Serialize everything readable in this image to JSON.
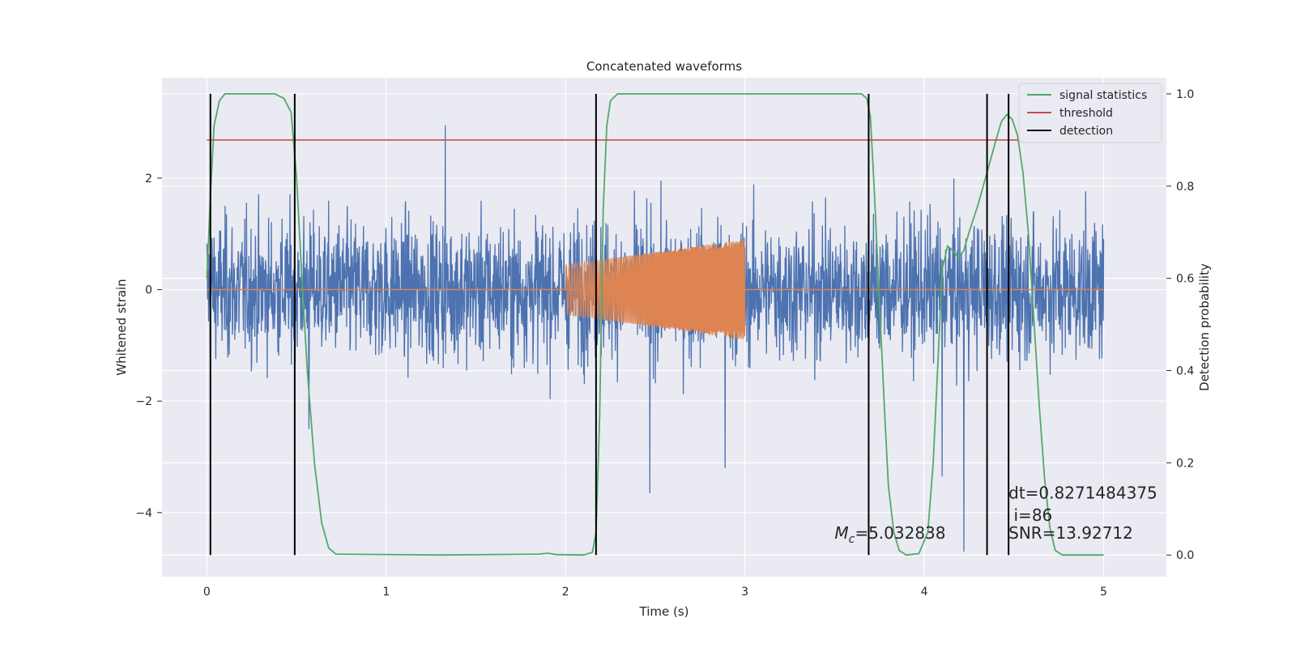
{
  "chart_data": {
    "type": "line",
    "title": "Concatenated waveforms",
    "xlabel": "Time (s)",
    "ylabel_left": "Whitened strain",
    "ylabel_right": "Detection probability",
    "xlim": [
      -0.25,
      5.35
    ],
    "ylim_left": [
      -5.15,
      3.8
    ],
    "ylim_right": [
      -0.047,
      1.035
    ],
    "x_ticks": [
      0,
      1,
      2,
      3,
      4,
      5
    ],
    "x_tick_labels": [
      "0",
      "1",
      "2",
      "3",
      "4",
      "5"
    ],
    "y_left_ticks": [
      -4,
      -2,
      0,
      2
    ],
    "y_left_tick_labels": [
      "−4",
      "−2",
      "0",
      "2"
    ],
    "y_right_ticks": [
      0.0,
      0.2,
      0.4,
      0.6,
      0.8,
      1.0
    ],
    "y_right_tick_labels": [
      "0.0",
      "0.2",
      "0.4",
      "0.6",
      "0.8",
      "1.0"
    ],
    "grid": true,
    "legend_position": "top-right",
    "series": [
      {
        "name": "",
        "kind": "noisy strain",
        "axis": "left",
        "color": "#4c72b0",
        "x_range": [
          0,
          5
        ],
        "typical_range": [
          -1.9,
          1.9
        ],
        "extreme_range": [
          -4.7,
          3.0
        ]
      },
      {
        "name": "",
        "kind": "injected chirp",
        "axis": "left",
        "color": "#dd8452",
        "x_range": [
          2.0,
          3.0
        ],
        "amplitude_start": 0.45,
        "amplitude_end": 0.9,
        "baseline": 0
      },
      {
        "name": "signal statistics",
        "axis": "right",
        "color": "#55a868",
        "points": [
          [
            0.0,
            0.6
          ],
          [
            0.02,
            0.78
          ],
          [
            0.04,
            0.93
          ],
          [
            0.07,
            0.985
          ],
          [
            0.1,
            1.0
          ],
          [
            0.38,
            1.0
          ],
          [
            0.43,
            0.99
          ],
          [
            0.47,
            0.96
          ],
          [
            0.5,
            0.82
          ],
          [
            0.53,
            0.6
          ],
          [
            0.56,
            0.4
          ],
          [
            0.6,
            0.2
          ],
          [
            0.64,
            0.07
          ],
          [
            0.68,
            0.015
          ],
          [
            0.72,
            0.002
          ],
          [
            1.3,
            0.0
          ],
          [
            1.85,
            0.002
          ],
          [
            1.9,
            0.004
          ],
          [
            1.95,
            0.001
          ],
          [
            2.1,
            0.0
          ],
          [
            2.15,
            0.006
          ],
          [
            2.17,
            0.05
          ],
          [
            2.19,
            0.3
          ],
          [
            2.21,
            0.75
          ],
          [
            2.23,
            0.93
          ],
          [
            2.25,
            0.985
          ],
          [
            2.29,
            1.0
          ],
          [
            3.65,
            1.0
          ],
          [
            3.68,
            0.99
          ],
          [
            3.7,
            0.95
          ],
          [
            3.72,
            0.8
          ],
          [
            3.75,
            0.55
          ],
          [
            3.78,
            0.3
          ],
          [
            3.8,
            0.15
          ],
          [
            3.83,
            0.05
          ],
          [
            3.86,
            0.01
          ],
          [
            3.9,
            0.0
          ],
          [
            3.97,
            0.003
          ],
          [
            4.02,
            0.05
          ],
          [
            4.05,
            0.2
          ],
          [
            4.08,
            0.45
          ],
          [
            4.1,
            0.62
          ],
          [
            4.13,
            0.67
          ],
          [
            4.16,
            0.66
          ],
          [
            4.19,
            0.645
          ],
          [
            4.22,
            0.66
          ],
          [
            4.25,
            0.7
          ],
          [
            4.3,
            0.76
          ],
          [
            4.35,
            0.83
          ],
          [
            4.4,
            0.9
          ],
          [
            4.43,
            0.94
          ],
          [
            4.46,
            0.955
          ],
          [
            4.49,
            0.945
          ],
          [
            4.52,
            0.91
          ],
          [
            4.55,
            0.83
          ],
          [
            4.58,
            0.7
          ],
          [
            4.61,
            0.52
          ],
          [
            4.64,
            0.33
          ],
          [
            4.67,
            0.17
          ],
          [
            4.7,
            0.06
          ],
          [
            4.73,
            0.01
          ],
          [
            4.77,
            0.0
          ],
          [
            5.0,
            0.0
          ]
        ]
      },
      {
        "name": "threshold",
        "axis": "right",
        "color": "#c44e52",
        "value": 0.9,
        "x_range": [
          0,
          5.1
        ]
      },
      {
        "name": "detection",
        "axis": "right",
        "color": "#000000",
        "x": [
          0.02,
          0.49,
          2.17,
          3.69,
          4.35,
          4.47
        ],
        "y_range": [
          0.0,
          1.0
        ]
      }
    ],
    "annotations": [
      {
        "text": "dt=0.8271484375",
        "x": 4.47,
        "y": -3.75
      },
      {
        "text": " i=86",
        "x": 4.47,
        "y": -4.15
      },
      {
        "text": "SNR=13.92712",
        "x": 4.47,
        "y": -4.47
      },
      {
        "text_main": "M",
        "text_sub": "c",
        "text_rest": "=5.032838",
        "x": 3.5,
        "y": -4.47
      }
    ]
  }
}
